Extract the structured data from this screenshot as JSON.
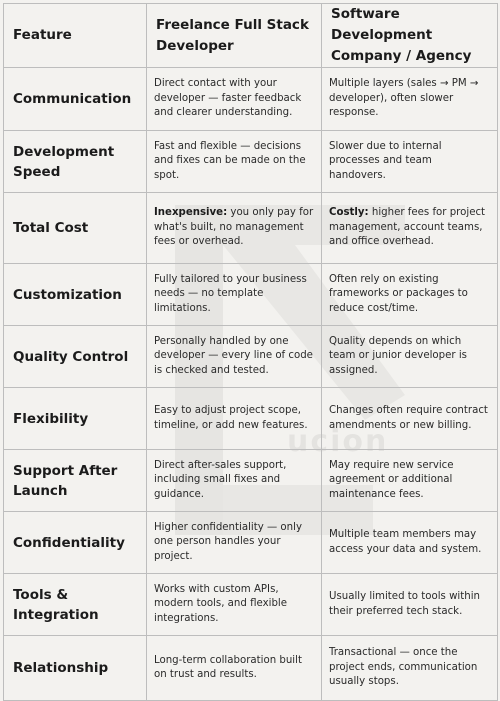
{
  "table": {
    "headers": {
      "feature": "Feature",
      "freelance": "Freelance Full Stack Developer",
      "agency": "Software Development Company / Agency"
    },
    "rows": [
      {
        "feature": "Communication",
        "freelance_lead": "",
        "freelance": "Direct contact with your developer — faster feedback and clearer understanding.",
        "agency_lead": "",
        "agency": "Multiple layers (sales → PM → developer), often slower response."
      },
      {
        "feature": "Development Speed",
        "freelance_lead": "",
        "freelance": "Fast and flexible — decisions and fixes can be made on the spot.",
        "agency_lead": "",
        "agency": "Slower due to internal processes and team handovers."
      },
      {
        "feature": "Total Cost",
        "freelance_lead": "Inexpensive:",
        "freelance": "you only pay for what's built, no management fees or overhead.",
        "agency_lead": "Costly:",
        "agency": "higher fees for project management, account teams, and office overhead."
      },
      {
        "feature": "Customization",
        "freelance_lead": "",
        "freelance": "Fully tailored to your business needs — no template limitations.",
        "agency_lead": "",
        "agency": "Often rely on existing frameworks or packages to reduce cost/time."
      },
      {
        "feature": "Quality Control",
        "freelance_lead": "",
        "freelance": "Personally handled by one developer — every line of code is checked and tested.",
        "agency_lead": "",
        "agency": "Quality depends on which team or junior developer is assigned."
      },
      {
        "feature": "Flexibility",
        "freelance_lead": "",
        "freelance": "Easy to adjust project scope, timeline, or add new features.",
        "agency_lead": "",
        "agency": "Changes often require contract amendments or new billing."
      },
      {
        "feature": "Support After Launch",
        "freelance_lead": "",
        "freelance": "Direct after-sales support, including small fixes and guidance.",
        "agency_lead": "",
        "agency": "May require new service agreement or additional maintenance fees."
      },
      {
        "feature": "Confidentiality",
        "freelance_lead": "",
        "freelance": "Higher confidentiality — only one person handles your project.",
        "agency_lead": "",
        "agency": "Multiple team members may access your data and system."
      },
      {
        "feature": "Tools & Integration",
        "freelance_lead": "",
        "freelance": "Works with custom APIs, modern tools, and flexible integrations.",
        "agency_lead": "",
        "agency": "Usually limited to tools within their preferred tech stack."
      },
      {
        "feature": "Relationship",
        "freelance_lead": "",
        "freelance": "Long-term collaboration built on trust and results.",
        "agency_lead": "",
        "agency": "Transactional — once the project ends, communication usually stops."
      }
    ]
  },
  "watermark": {
    "text": "ucion",
    "icon": "logo-watermark-icon"
  }
}
